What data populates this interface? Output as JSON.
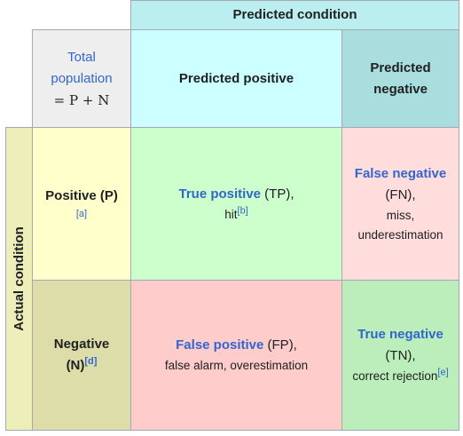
{
  "header": {
    "predicted_condition": "Predicted condition"
  },
  "corner": {
    "total_line1": "Total",
    "total_line2": "population",
    "formula": "= P + N"
  },
  "columns": {
    "predicted_positive": "Predicted positive",
    "predicted_negative_line1": "Predicted",
    "predicted_negative_line2": "negative"
  },
  "rows": {
    "actual_condition": "Actual condition",
    "positive_label": "Positive (P)",
    "positive_ref": "[a]",
    "negative_line1": "Negative",
    "negative_line2": "(N)",
    "negative_ref": "[d]"
  },
  "cells": {
    "tp_term": "True positive",
    "tp_abbr": " (TP),",
    "tp_alt": "hit",
    "tp_ref": "[b]",
    "fn_term": "False negative",
    "fn_abbr": "(FN),",
    "fn_alt1": "miss,",
    "fn_alt2": "underestimation",
    "fp_term": "False positive",
    "fp_abbr": " (FP),",
    "fp_alt": "false alarm, overestimation",
    "tn_term": "True negative",
    "tn_abbr": "(TN),",
    "tn_alt": "correct rejection",
    "tn_ref": "[e]"
  },
  "colors": {
    "predicted_condition_bg": "#bbeeee",
    "total_bg": "#eeeeee",
    "predicted_positive_bg": "#ccffff",
    "predicted_negative_bg": "#aadddd",
    "actual_condition_bg": "#eeeebb",
    "positive_bg": "#ffffcc",
    "negative_bg": "#ddddaa",
    "tp_bg": "#ccffcc",
    "fn_bg": "#ffdddd",
    "fp_bg": "#ffcccc",
    "tn_bg": "#bbeebb",
    "link": "#3366cc"
  }
}
